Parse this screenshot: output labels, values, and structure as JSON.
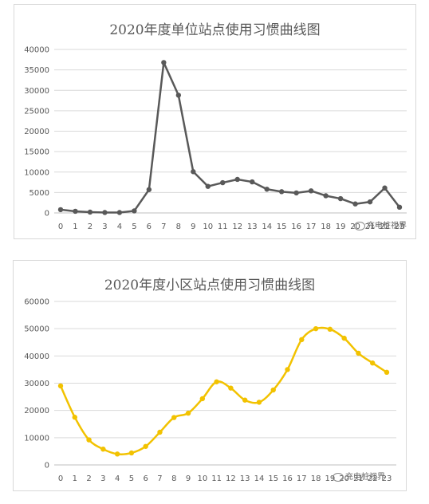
{
  "chart_data": [
    {
      "type": "line",
      "title": "2020年度单位站点使用习惯曲线图",
      "x": [
        0,
        1,
        2,
        3,
        4,
        5,
        6,
        7,
        8,
        9,
        10,
        11,
        12,
        13,
        14,
        15,
        16,
        17,
        18,
        19,
        20,
        21,
        22,
        23
      ],
      "categories": [
        "0",
        "1",
        "2",
        "3",
        "4",
        "5",
        "6",
        "7",
        "8",
        "9",
        "10",
        "11",
        "12",
        "13",
        "14",
        "15",
        "16",
        "17",
        "18",
        "19",
        "20",
        "21",
        "22",
        "23"
      ],
      "series": [
        {
          "values": [
            800,
            400,
            200,
            100,
            100,
            500,
            5700,
            36800,
            28800,
            10100,
            6500,
            7400,
            8200,
            7600,
            5800,
            5200,
            4900,
            5400,
            4200,
            3500,
            2200,
            2700,
            6100,
            1400
          ]
        }
      ],
      "ylim": [
        0,
        40000
      ],
      "yticks": [
        "0",
        "5000",
        "10000",
        "15000",
        "20000",
        "25000",
        "30000",
        "35000",
        "40000"
      ],
      "xlabel": "",
      "ylabel": "",
      "grid": true,
      "smooth": false,
      "color": "#595959",
      "watermark": "充电桩视界"
    },
    {
      "type": "line",
      "title": "2020年度小区站点使用习惯曲线图",
      "x": [
        0,
        1,
        2,
        3,
        4,
        5,
        6,
        7,
        8,
        9,
        10,
        11,
        12,
        13,
        14,
        15,
        16,
        17,
        18,
        19,
        20,
        21,
        22,
        23
      ],
      "categories": [
        "0",
        "1",
        "2",
        "3",
        "4",
        "5",
        "6",
        "7",
        "8",
        "9",
        "10",
        "11",
        "12",
        "13",
        "14",
        "15",
        "16",
        "17",
        "18",
        "19",
        "20",
        "21",
        "22",
        "23"
      ],
      "series": [
        {
          "values": [
            29000,
            17500,
            9200,
            5800,
            4000,
            4400,
            6800,
            12000,
            17400,
            19000,
            24300,
            30500,
            28200,
            23800,
            23000,
            27500,
            35000,
            46000,
            50000,
            49800,
            46500,
            41000,
            37400,
            34000
          ]
        }
      ],
      "ylim": [
        0,
        60000
      ],
      "yticks": [
        "0",
        "10000",
        "20000",
        "30000",
        "40000",
        "50000",
        "60000"
      ],
      "xlabel": "",
      "ylabel": "",
      "grid": true,
      "smooth": true,
      "color": "#f2c200",
      "watermark": "充电桩视界"
    }
  ]
}
